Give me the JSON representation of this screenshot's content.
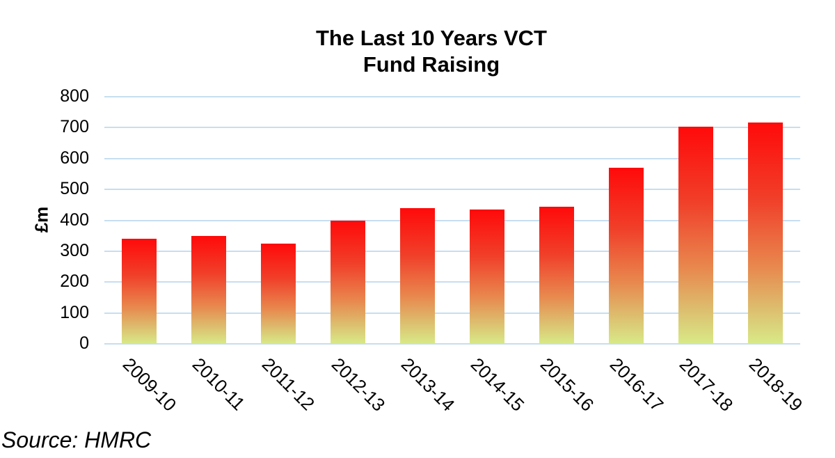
{
  "chart_data": {
    "type": "bar",
    "title": "The Last 10 Years VCT Fund Raising",
    "title_lines": [
      "The Last 10 Years VCT",
      "Fund Raising"
    ],
    "xlabel": "",
    "ylabel": "£m",
    "ylim": [
      0,
      800
    ],
    "yticks": [
      0,
      100,
      200,
      300,
      400,
      500,
      600,
      700,
      800
    ],
    "grid": true,
    "legend": null,
    "categories": [
      "2009-10",
      "2010-11",
      "2011-12",
      "2012-13",
      "2013-14",
      "2014-15",
      "2015-16",
      "2016-17",
      "2017-18",
      "2018-19"
    ],
    "values": [
      340,
      350,
      325,
      400,
      440,
      435,
      445,
      570,
      703,
      716
    ],
    "bar_gradient": [
      "#ff0a0a",
      "#d8ea88"
    ],
    "gridline_color": "#c6def0"
  },
  "source": "Source: HMRC"
}
